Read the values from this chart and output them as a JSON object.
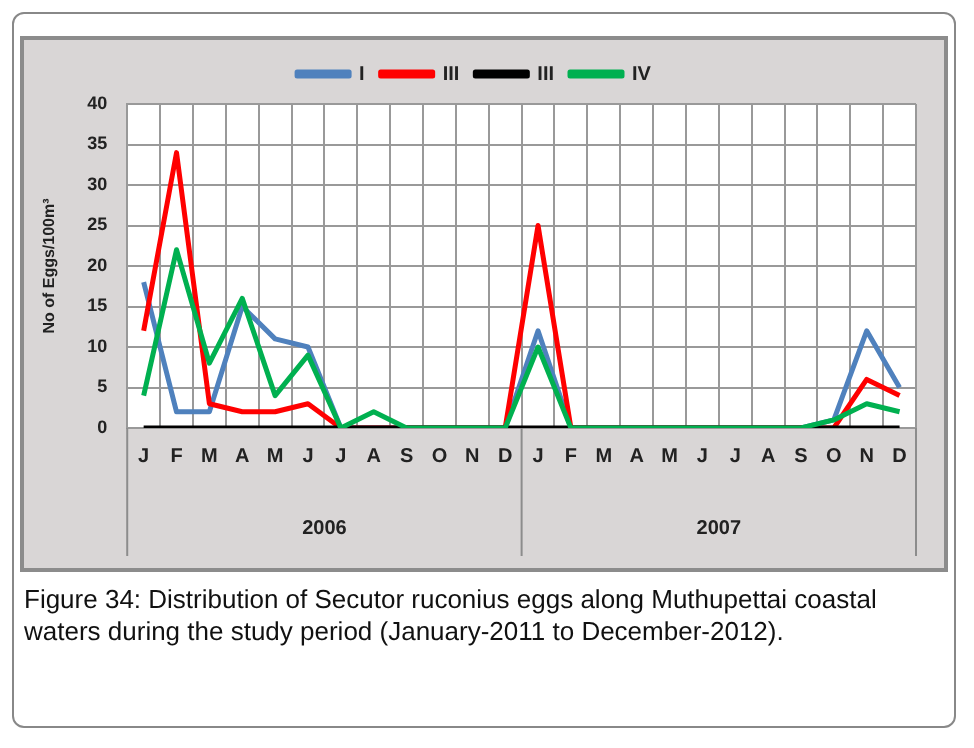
{
  "chart_data": {
    "type": "line",
    "ylabel": "No of Eggs/100m³",
    "categories": [
      "J",
      "F",
      "M",
      "A",
      "M",
      "J",
      "J",
      "A",
      "S",
      "O",
      "N",
      "D",
      "J",
      "F",
      "M",
      "A",
      "M",
      "J",
      "J",
      "A",
      "S",
      "O",
      "N",
      "D"
    ],
    "series": [
      {
        "name": "I",
        "color": "#4f81bd",
        "values": [
          18,
          2,
          2,
          15,
          11,
          10,
          0,
          0,
          0,
          0,
          0,
          0,
          12,
          0,
          0,
          0,
          0,
          0,
          0,
          0,
          0,
          1,
          12,
          5
        ]
      },
      {
        "name": "III",
        "color": "#ff0000",
        "values": [
          12,
          34,
          3,
          2,
          2,
          3,
          0,
          0,
          0,
          0,
          0,
          0,
          25,
          0,
          0,
          0,
          0,
          0,
          0,
          0,
          0,
          0,
          6,
          4
        ]
      },
      {
        "name": "III",
        "color": "#000000",
        "values": [
          0,
          0,
          0,
          0,
          0,
          0,
          0,
          0,
          0,
          0,
          0,
          0,
          0,
          0,
          0,
          0,
          0,
          0,
          0,
          0,
          0,
          0,
          0,
          0
        ]
      },
      {
        "name": "IV",
        "color": "#00b050",
        "values": [
          4,
          22,
          8,
          16,
          4,
          9,
          0,
          2,
          0,
          0,
          0,
          0,
          10,
          0,
          0,
          0,
          0,
          0,
          0,
          0,
          0,
          1,
          3,
          2
        ]
      }
    ],
    "ylim": [
      0,
      40
    ],
    "yticks": [
      0,
      5,
      10,
      15,
      20,
      25,
      30,
      35,
      40
    ],
    "grid": true,
    "legend": "top",
    "marker": "none",
    "line_style": "solid",
    "annotations": [
      "2006",
      "2007",
      "Figure 34: Distribution of Secutor ruconius eggs along Muthupettai coastal waters during the study period (January-2011 to December-2012)."
    ]
  }
}
